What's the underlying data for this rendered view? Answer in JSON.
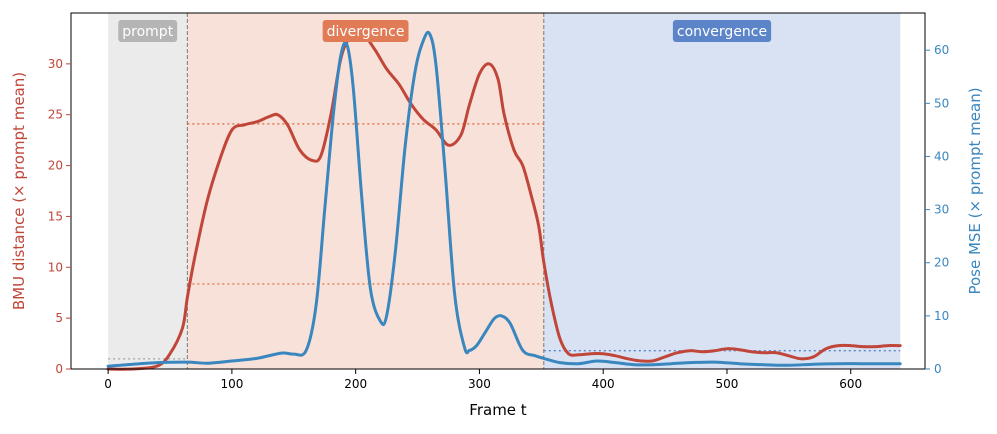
{
  "chart_data": {
    "type": "line",
    "xlabel": "Frame  t",
    "ylabel_left": "BMU distance  (× prompt mean)",
    "ylabel_right": "Pose MSE  (× prompt mean)",
    "xlim": [
      -30,
      660
    ],
    "ylim_left": [
      0,
      35
    ],
    "ylim_right": [
      0,
      67
    ],
    "x_ticks": [
      0,
      100,
      200,
      300,
      400,
      500,
      600
    ],
    "y_left_ticks": [
      0,
      5,
      10,
      15,
      20,
      25,
      30
    ],
    "y_right_ticks": [
      0,
      10,
      20,
      30,
      40,
      50,
      60
    ],
    "colors": {
      "bmu": "#c0463a",
      "pose": "#3a86bf",
      "prompt_bg": "#ebebeb",
      "divergence_bg": "#f8e1d8",
      "convergence_bg": "#d9e2f3",
      "prompt_badge": "#b5b5b5",
      "divergence_badge": "#e07b55",
      "convergence_badge": "#5b84c9"
    },
    "phases": [
      {
        "name": "prompt",
        "start": 0,
        "end": 64
      },
      {
        "name": "divergence",
        "start": 64,
        "end": 352
      },
      {
        "name": "convergence",
        "start": 352,
        "end": 640
      }
    ],
    "reference_lines": [
      {
        "axis": "left",
        "y": 1.0,
        "x0": 0,
        "x1": 64,
        "color": "#aaaaaa"
      },
      {
        "axis": "left",
        "y": 24.1,
        "x0": 64,
        "x1": 352,
        "color": "#e07b55"
      },
      {
        "axis": "right",
        "y": 16.0,
        "x0": 64,
        "x1": 352,
        "color": "#e07b55"
      },
      {
        "axis": "left",
        "y": 1.8,
        "x0": 352,
        "x1": 640,
        "color": "#5b84c9"
      }
    ],
    "series": [
      {
        "name": "BMU distance",
        "axis": "left",
        "x": [
          0,
          20,
          40,
          50,
          60,
          64,
          70,
          80,
          90,
          100,
          110,
          120,
          130,
          137,
          145,
          155,
          165,
          172,
          180,
          188,
          195,
          205,
          215,
          225,
          235,
          245,
          255,
          265,
          275,
          285,
          292,
          300,
          308,
          315,
          320,
          328,
          335,
          342,
          348,
          352,
          358,
          365,
          372,
          380,
          390,
          400,
          410,
          420,
          430,
          440,
          450,
          460,
          470,
          480,
          490,
          500,
          510,
          520,
          530,
          540,
          550,
          560,
          570,
          580,
          590,
          600,
          610,
          620,
          630,
          640
        ],
        "values": [
          0,
          0,
          0.3,
          1.5,
          4,
          7,
          11,
          16.5,
          20.5,
          23.5,
          24,
          24.3,
          24.8,
          25,
          24,
          21.5,
          20.5,
          21,
          25,
          30.5,
          32.5,
          33,
          31.5,
          29.5,
          28,
          26,
          24.5,
          23.5,
          22,
          23,
          26,
          29,
          30,
          28.5,
          25,
          21.5,
          20,
          17,
          14,
          10.5,
          6.5,
          3,
          1.5,
          1.4,
          1.5,
          1.5,
          1.3,
          1.0,
          0.8,
          0.8,
          1.2,
          1.6,
          1.8,
          1.7,
          1.8,
          2.0,
          1.9,
          1.7,
          1.6,
          1.6,
          1.3,
          1.0,
          1.2,
          2.0,
          2.3,
          2.3,
          2.2,
          2.2,
          2.3,
          2.3
        ]
      },
      {
        "name": "Pose MSE",
        "axis": "right",
        "x": [
          0,
          20,
          40,
          64,
          80,
          100,
          120,
          140,
          150,
          160,
          168,
          175,
          182,
          188,
          193,
          198,
          205,
          212,
          220,
          225,
          232,
          240,
          248,
          255,
          260,
          265,
          272,
          280,
          288,
          292,
          298,
          305,
          312,
          318,
          325,
          335,
          345,
          352,
          365,
          380,
          395,
          410,
          425,
          440,
          455,
          470,
          490,
          510,
          530,
          550,
          570,
          590,
          610,
          640
        ],
        "values": [
          0.5,
          0.9,
          1.2,
          1.3,
          1.1,
          1.5,
          2.0,
          3.0,
          2.8,
          3.5,
          12,
          30,
          48,
          59,
          61,
          53,
          32,
          15,
          9,
          10,
          22,
          42,
          56,
          62,
          63,
          57,
          38,
          14,
          4,
          3.5,
          4.5,
          7,
          9.5,
          10,
          8.5,
          3.5,
          2.5,
          2,
          1.2,
          1.0,
          1.5,
          1.2,
          0.8,
          0.8,
          1.0,
          1.2,
          1.3,
          1.0,
          0.8,
          0.7,
          0.9,
          1.0,
          1.0,
          1.0
        ]
      }
    ]
  }
}
